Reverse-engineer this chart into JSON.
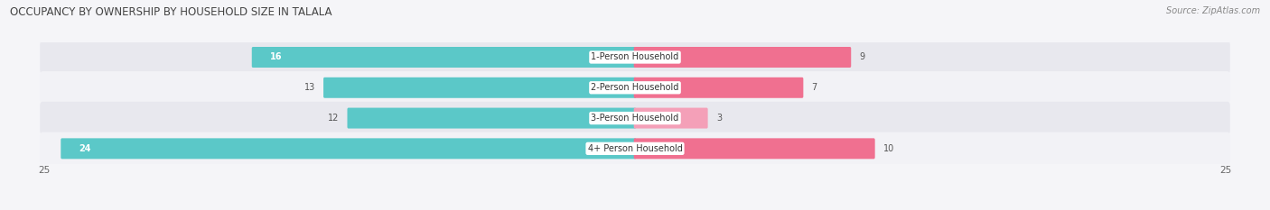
{
  "title": "OCCUPANCY BY OWNERSHIP BY HOUSEHOLD SIZE IN TALALA",
  "source": "Source: ZipAtlas.com",
  "categories": [
    "1-Person Household",
    "2-Person Household",
    "3-Person Household",
    "4+ Person Household"
  ],
  "owner_values": [
    16,
    13,
    12,
    24
  ],
  "renter_values": [
    9,
    7,
    3,
    10
  ],
  "owner_color": "#5bc8c8",
  "renter_color": "#f07090",
  "renter_color_light": "#f4a0b8",
  "row_bg_colors": [
    "#e8e8ee",
    "#f2f2f6",
    "#e8e8ee",
    "#f2f2f6"
  ],
  "max_val": 25,
  "title_fontsize": 8.5,
  "source_fontsize": 7,
  "bar_label_fontsize": 7,
  "category_fontsize": 7,
  "tick_fontsize": 7.5,
  "legend_fontsize": 7.5,
  "inside_label_threshold": 14
}
